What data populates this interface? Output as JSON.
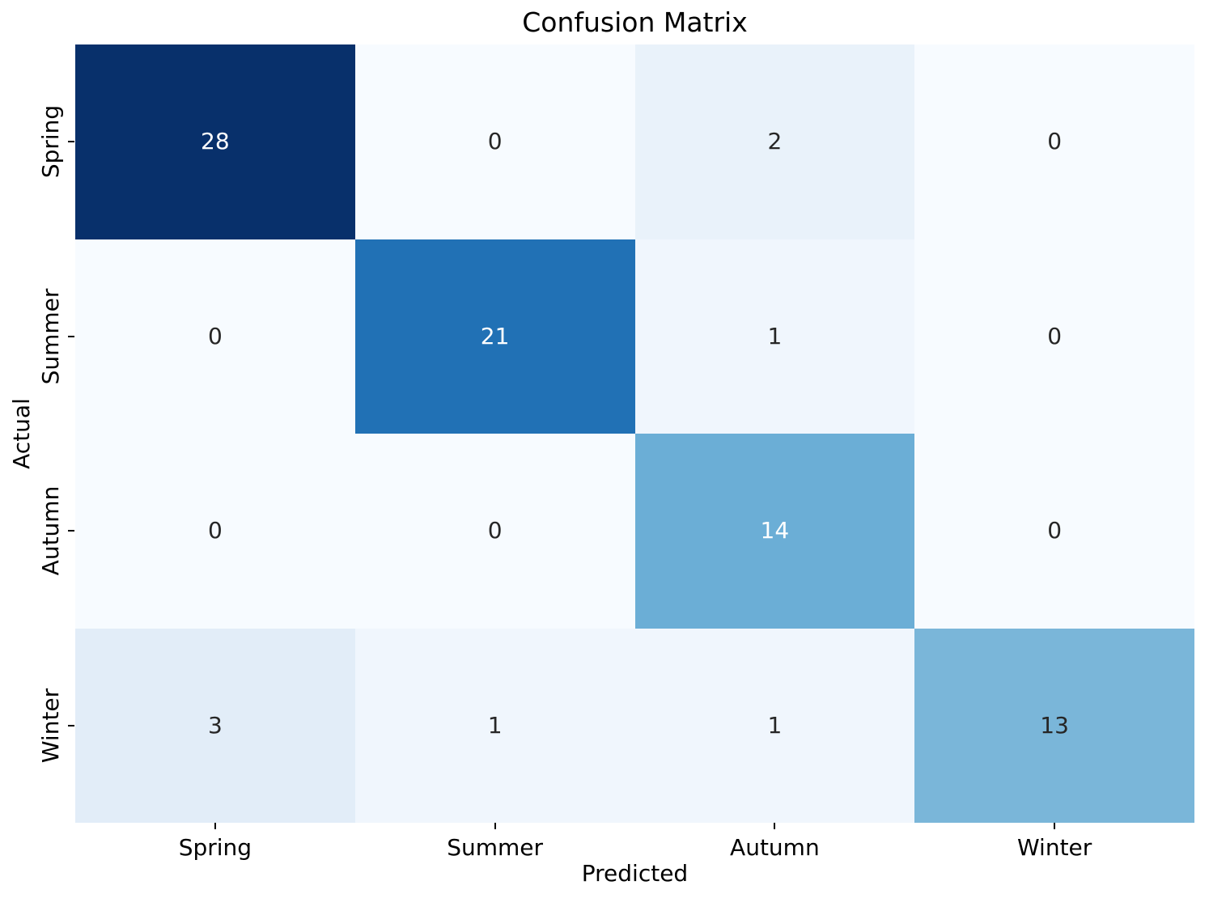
{
  "figure": {
    "background_color": "#ffffff"
  },
  "chart_data": {
    "type": "heatmap",
    "title": "Confusion Matrix",
    "xlabel": "Predicted",
    "ylabel": "Actual",
    "x_categories": [
      "Spring",
      "Summer",
      "Autumn",
      "Winter"
    ],
    "y_categories": [
      "Spring",
      "Summer",
      "Autumn",
      "Winter"
    ],
    "matrix": [
      [
        28,
        0,
        2,
        0
      ],
      [
        0,
        21,
        1,
        0
      ],
      [
        0,
        0,
        14,
        0
      ],
      [
        3,
        1,
        1,
        13
      ]
    ],
    "colormap": "Blues",
    "vmin": 0,
    "vmax": 28,
    "colorbar": false,
    "grid": false,
    "cell_bg": [
      [
        "#08306b",
        "#f7fbff",
        "#e9f2fa",
        "#f7fbff"
      ],
      [
        "#f7fbff",
        "#2171b5",
        "#f0f6fd",
        "#f7fbff"
      ],
      [
        "#f7fbff",
        "#f7fbff",
        "#6baed6",
        "#f7fbff"
      ],
      [
        "#e2edf8",
        "#f0f6fd",
        "#f0f6fd",
        "#7ab6d9"
      ]
    ],
    "cell_fg": [
      [
        "#ffffff",
        "#262626",
        "#262626",
        "#262626"
      ],
      [
        "#262626",
        "#ffffff",
        "#262626",
        "#262626"
      ],
      [
        "#262626",
        "#262626",
        "#ffffff",
        "#262626"
      ],
      [
        "#262626",
        "#262626",
        "#262626",
        "#262626"
      ]
    ],
    "axis_text_color": "#000000"
  }
}
